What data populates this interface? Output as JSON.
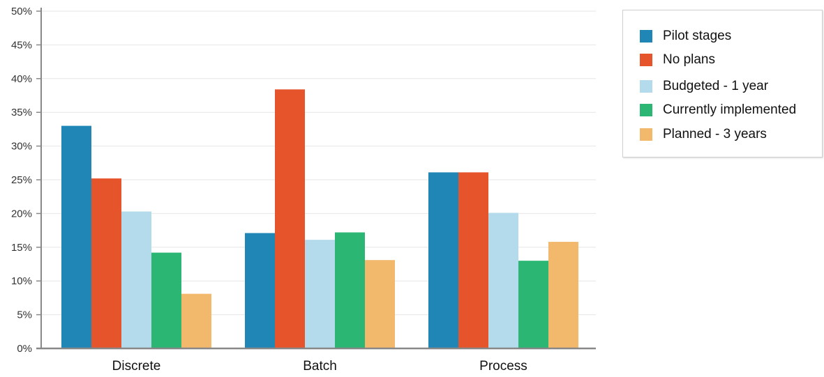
{
  "chart_data": {
    "type": "bar",
    "categories": [
      "Discrete",
      "Batch",
      "Process"
    ],
    "series": [
      {
        "name": "Pilot stages",
        "color": "#1f86b5",
        "values": [
          33,
          17.1,
          26.1
        ]
      },
      {
        "name": "No plans",
        "color": "#e6542c",
        "values": [
          25.2,
          38.4,
          26.1
        ]
      },
      {
        "name": "Budgeted - 1 year",
        "color": "#b3dbeb",
        "values": [
          20.3,
          16.1,
          20.1
        ]
      },
      {
        "name": "Currently implemented",
        "color": "#2bb673",
        "values": [
          14.2,
          17.2,
          13
        ]
      },
      {
        "name": "Planned - 3 years",
        "color": "#f2b86b",
        "values": [
          8.1,
          13.1,
          15.8
        ]
      }
    ],
    "yticks": [
      "0%",
      "5%",
      "10%",
      "15%",
      "20%",
      "25%",
      "30%",
      "35%",
      "40%",
      "45%",
      "50%"
    ],
    "ylim": [
      0,
      50
    ],
    "grid": true,
    "legend_position": "right"
  }
}
